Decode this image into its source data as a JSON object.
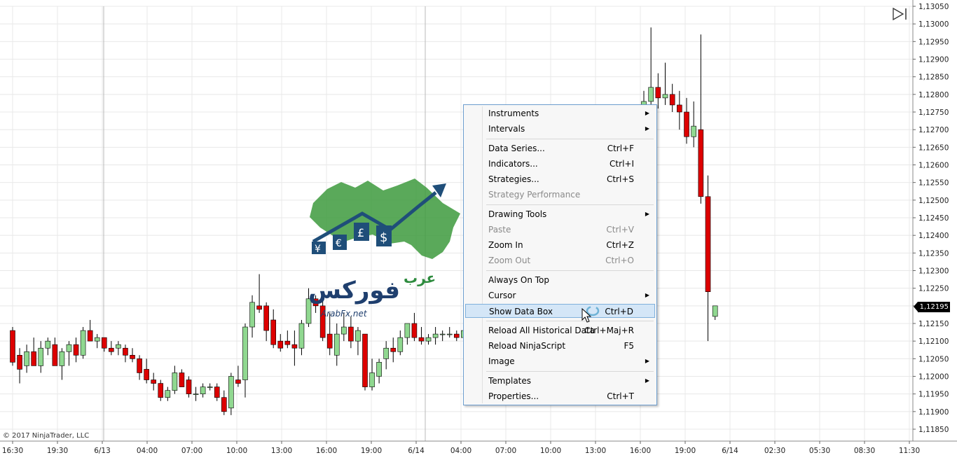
{
  "chart_data": {
    "type": "candlestick",
    "y_ticks": [
      "1,13050",
      "1,13000",
      "1,12950",
      "1,12900",
      "1,12850",
      "1,12800",
      "1,12750",
      "1,12700",
      "1,12650",
      "1,12600",
      "1,12550",
      "1,12500",
      "1,12450",
      "1,12400",
      "1,12350",
      "1,12300",
      "1,12250",
      "1,12200",
      "1,12150",
      "1,12100",
      "1,12050",
      "1,12000",
      "1,11950",
      "1,11900",
      "1,11850"
    ],
    "x_ticks": [
      "16:30",
      "19:30",
      "6/13",
      "04:00",
      "07:00",
      "10:00",
      "13:00",
      "16:00",
      "19:00",
      "6/14",
      "04:00",
      "07:00",
      "10:00",
      "13:00",
      "16:00",
      "19:00",
      "6/14",
      "02:30",
      "05:30",
      "08:30",
      "11:30"
    ],
    "ylim": [
      1.11825,
      1.13055
    ],
    "current_price": "1,12195",
    "candles": [
      [
        1.1213,
        1.1214,
        1.1203,
        1.1204
      ],
      [
        1.1206,
        1.1208,
        1.1198,
        1.1202
      ],
      [
        1.1203,
        1.1209,
        1.1201,
        1.1207
      ],
      [
        1.1207,
        1.1211,
        1.1203,
        1.1203
      ],
      [
        1.1203,
        1.121,
        1.1201,
        1.1208
      ],
      [
        1.1208,
        1.1211,
        1.1206,
        1.121
      ],
      [
        1.1209,
        1.1211,
        1.1203,
        1.1203
      ],
      [
        1.1203,
        1.1208,
        1.1199,
        1.1207
      ],
      [
        1.1207,
        1.121,
        1.1203,
        1.1209
      ],
      [
        1.1209,
        1.1211,
        1.1204,
        1.1206
      ],
      [
        1.1206,
        1.1214,
        1.1205,
        1.1213
      ],
      [
        1.1213,
        1.1216,
        1.121,
        1.121
      ],
      [
        1.121,
        1.1212,
        1.1208,
        1.1211
      ],
      [
        1.1211,
        1.1211,
        1.1207,
        1.1208
      ],
      [
        1.1208,
        1.121,
        1.1206,
        1.1207
      ],
      [
        1.1208,
        1.121,
        1.1206,
        1.1209
      ],
      [
        1.1208,
        1.1209,
        1.1204,
        1.1206
      ],
      [
        1.1206,
        1.1208,
        1.1204,
        1.1205
      ],
      [
        1.1205,
        1.1206,
        1.1199,
        1.1201
      ],
      [
        1.1202,
        1.1205,
        1.1198,
        1.1199
      ],
      [
        1.1199,
        1.1201,
        1.1196,
        1.1198
      ],
      [
        1.1198,
        1.1199,
        1.1193,
        1.1194
      ],
      [
        1.1194,
        1.1197,
        1.1193,
        1.1196
      ],
      [
        1.1196,
        1.1203,
        1.1195,
        1.1201
      ],
      [
        1.1201,
        1.1202,
        1.1197,
        1.1197
      ],
      [
        1.1199,
        1.12,
        1.1194,
        1.1195
      ],
      [
        1.1195,
        1.1197,
        1.1193,
        1.1195
      ],
      [
        1.1195,
        1.1198,
        1.1194,
        1.1197
      ],
      [
        1.1197,
        1.1198,
        1.1196,
        1.1197
      ],
      [
        1.1197,
        1.1198,
        1.1193,
        1.1194
      ],
      [
        1.1194,
        1.1196,
        1.1189,
        1.119
      ],
      [
        1.1191,
        1.1201,
        1.1189,
        1.12
      ],
      [
        1.1199,
        1.1203,
        1.1197,
        1.1198
      ],
      [
        1.1199,
        1.1215,
        1.1194,
        1.1214
      ],
      [
        1.1214,
        1.1223,
        1.1211,
        1.1221
      ],
      [
        1.122,
        1.1229,
        1.1218,
        1.1219
      ],
      [
        1.122,
        1.1221,
        1.121,
        1.1213
      ],
      [
        1.1216,
        1.1219,
        1.1208,
        1.1209
      ],
      [
        1.121,
        1.1212,
        1.1207,
        1.1208
      ],
      [
        1.121,
        1.1213,
        1.1208,
        1.1209
      ],
      [
        1.1209,
        1.1213,
        1.1203,
        1.1208
      ],
      [
        1.1208,
        1.1216,
        1.1206,
        1.1215
      ],
      [
        1.1215,
        1.1225,
        1.1214,
        1.1222
      ],
      [
        1.1222,
        1.1223,
        1.1218,
        1.122
      ],
      [
        1.122,
        1.1224,
        1.121,
        1.1211
      ],
      [
        1.1212,
        1.1218,
        1.1206,
        1.1208
      ],
      [
        1.1206,
        1.1215,
        1.1203,
        1.1212
      ],
      [
        1.1212,
        1.1218,
        1.121,
        1.1214
      ],
      [
        1.1214,
        1.1217,
        1.1208,
        1.121
      ],
      [
        1.121,
        1.1214,
        1.1206,
        1.1213
      ],
      [
        1.1212,
        1.1212,
        1.1196,
        1.1197
      ],
      [
        1.1197,
        1.1205,
        1.1196,
        1.1201
      ],
      [
        1.12,
        1.1205,
        1.1198,
        1.1204
      ],
      [
        1.1205,
        1.121,
        1.1202,
        1.1208
      ],
      [
        1.1208,
        1.1211,
        1.1204,
        1.1207
      ],
      [
        1.1207,
        1.1213,
        1.1206,
        1.1211
      ],
      [
        1.1211,
        1.1215,
        1.1209,
        1.1215
      ],
      [
        1.1215,
        1.1218,
        1.121,
        1.1211
      ],
      [
        1.1211,
        1.1214,
        1.1209,
        1.121
      ],
      [
        1.121,
        1.1212,
        1.1209,
        1.1211
      ],
      [
        1.1211,
        1.1214,
        1.1209,
        1.1212
      ],
      [
        1.1212,
        1.1213,
        1.121,
        1.1212
      ],
      [
        1.1212,
        1.1214,
        1.1211,
        1.1212
      ],
      [
        1.1212,
        1.1213,
        1.121,
        1.1211
      ],
      [
        1.1211,
        1.1213,
        1.1209,
        1.1213
      ],
      [
        1.1277,
        1.1281,
        1.127,
        1.1278
      ],
      [
        1.1278,
        1.1299,
        1.1274,
        1.1282
      ],
      [
        1.1282,
        1.1286,
        1.1276,
        1.1279
      ],
      [
        1.1279,
        1.1289,
        1.1277,
        1.128
      ],
      [
        1.128,
        1.1283,
        1.1275,
        1.1277
      ],
      [
        1.1277,
        1.1281,
        1.127,
        1.1275
      ],
      [
        1.1275,
        1.1279,
        1.1266,
        1.1268
      ],
      [
        1.1268,
        1.1278,
        1.1265,
        1.1271
      ],
      [
        1.127,
        1.1297,
        1.1249,
        1.1251
      ],
      [
        1.1251,
        1.1257,
        1.121,
        1.1224
      ],
      [
        1.1217,
        1.122,
        1.1216,
        1.122
      ]
    ]
  },
  "watermark": {
    "latin": "ArabFx.net",
    "arabic_main": "فوركس",
    "arabic_top": "عرب"
  },
  "copyright": "© 2017 NinjaTrader, LLC",
  "context_menu": {
    "items": [
      {
        "label": "Instruments",
        "shortcut": "",
        "submenu": true,
        "disabled": false
      },
      {
        "label": "Intervals",
        "shortcut": "",
        "submenu": true,
        "disabled": false
      },
      {
        "label": "Data Series...",
        "shortcut": "Ctrl+F",
        "submenu": false,
        "disabled": false
      },
      {
        "label": "Indicators...",
        "shortcut": "Ctrl+I",
        "submenu": false,
        "disabled": false
      },
      {
        "label": "Strategies...",
        "shortcut": "Ctrl+S",
        "submenu": false,
        "disabled": false
      },
      {
        "label": "Strategy Performance",
        "shortcut": "",
        "submenu": false,
        "disabled": true
      },
      {
        "label": "Drawing Tools",
        "shortcut": "",
        "submenu": true,
        "disabled": false
      },
      {
        "label": "Paste",
        "shortcut": "Ctrl+V",
        "submenu": false,
        "disabled": true
      },
      {
        "label": "Zoom In",
        "shortcut": "Ctrl+Z",
        "submenu": false,
        "disabled": false
      },
      {
        "label": "Zoom Out",
        "shortcut": "Ctrl+O",
        "submenu": false,
        "disabled": true
      },
      {
        "label": "Always On Top",
        "shortcut": "",
        "submenu": false,
        "disabled": false
      },
      {
        "label": "Cursor",
        "shortcut": "",
        "submenu": true,
        "disabled": false
      },
      {
        "label": "Show Data Box",
        "shortcut": "Ctrl+D",
        "submenu": false,
        "disabled": false,
        "highlighted": true
      },
      {
        "label": "Reload All Historical Data",
        "shortcut": "Ctrl+Maj+R",
        "submenu": false,
        "disabled": false
      },
      {
        "label": "Reload NinjaScript",
        "shortcut": "F5",
        "submenu": false,
        "disabled": false
      },
      {
        "label": "Image",
        "shortcut": "",
        "submenu": true,
        "disabled": false
      },
      {
        "label": "Templates",
        "shortcut": "",
        "submenu": true,
        "disabled": false
      },
      {
        "label": "Properties...",
        "shortcut": "Ctrl+T",
        "submenu": false,
        "disabled": false
      }
    ]
  },
  "colors": {
    "up": "#90d890",
    "down": "#dd0000",
    "grid": "#e6e6e6",
    "menu_highlight": "#d4e6f7"
  }
}
